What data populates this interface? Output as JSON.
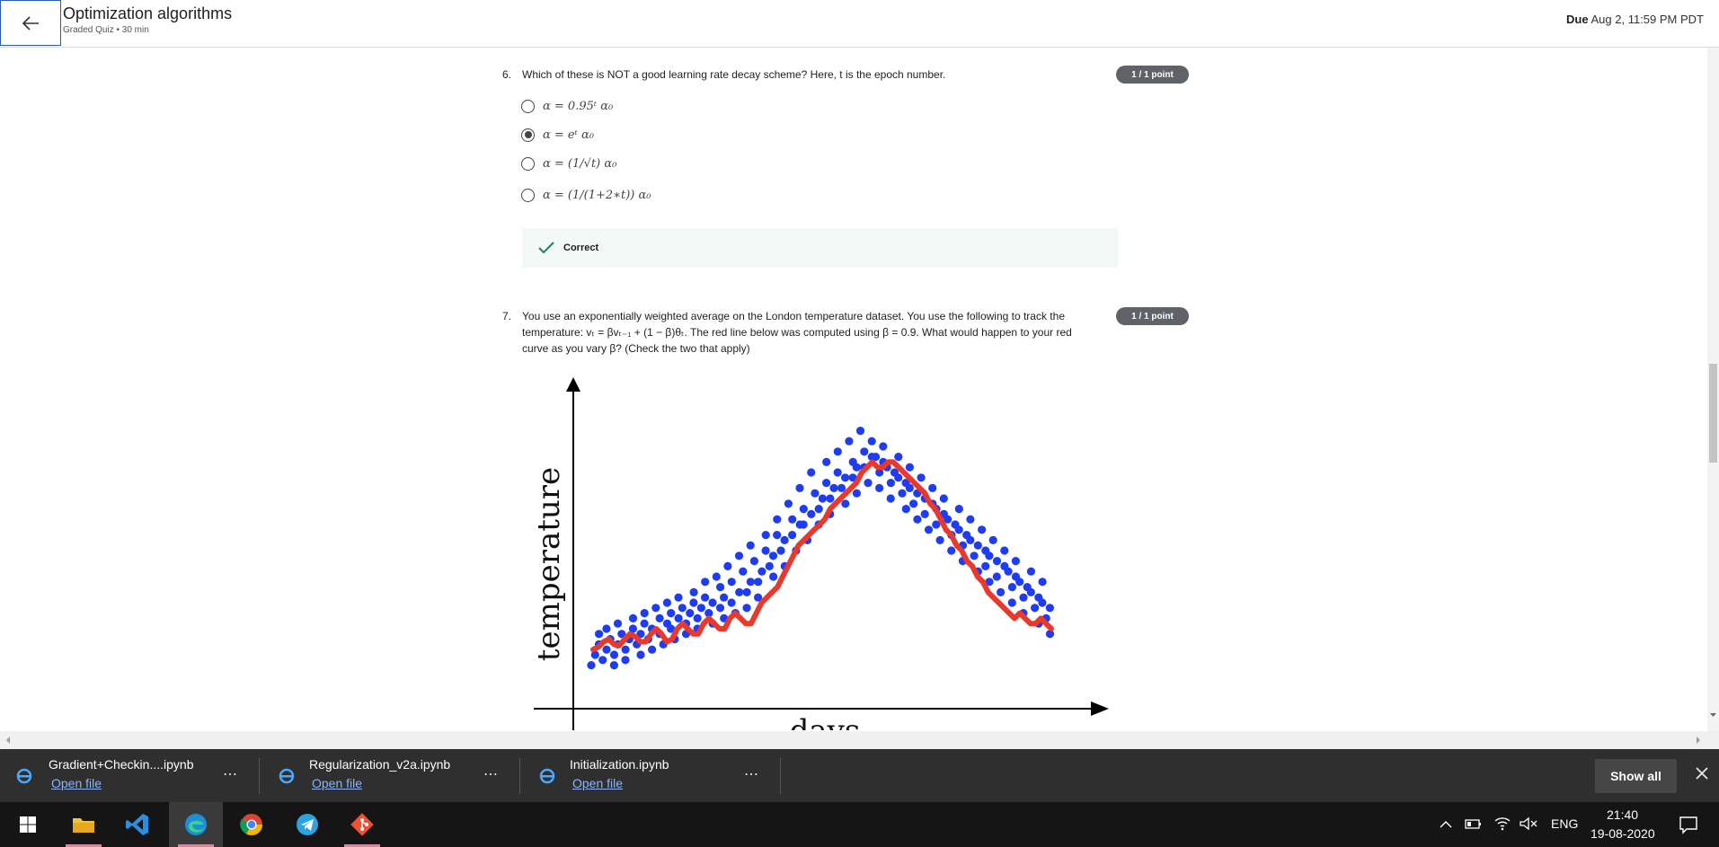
{
  "header": {
    "title": "Optimization algorithms",
    "subtitle": "Graded Quiz • 30 min",
    "due_label": "Due",
    "due_value": "Aug 2, 11:59 PM PDT"
  },
  "question6": {
    "number": "6.",
    "text": "Which of these is NOT a good learning rate decay scheme? Here, t is the epoch number.",
    "badge": "1 / 1 point",
    "options": [
      {
        "text": "α = 0.95ᵗ α₀",
        "selected": false
      },
      {
        "text": "α = eᵗ α₀",
        "selected": true
      },
      {
        "text": "α = (1/√t) α₀",
        "selected": false
      },
      {
        "text": "α = (1/(1+2∗t)) α₀",
        "selected": false
      }
    ],
    "feedback": "Correct"
  },
  "question7": {
    "number": "7.",
    "line1": "You use an exponentially weighted average on the London temperature dataset. You use the following to track the",
    "line2": "temperature: vₜ = βvₜ₋₁ + (1 − β)θₜ. The red line below was computed using β = 0.9. What would happen to your red",
    "line3": "curve as you vary β? (Check the two that apply)",
    "badge": "1 / 1 point"
  },
  "chart_data": {
    "type": "scatter",
    "xlabel": "days",
    "ylabel": "temperature",
    "point_color": "#1f3cf5",
    "line_color": "#e8392c",
    "points_y": [
      3,
      5,
      9,
      7,
      4,
      6,
      10,
      8,
      5,
      3,
      7,
      11,
      9,
      6,
      4,
      8,
      12,
      10,
      7,
      5,
      9,
      13,
      11,
      8,
      6,
      10,
      14,
      12,
      9,
      7,
      11,
      15,
      13,
      10,
      8,
      12,
      16,
      14,
      11,
      9,
      13,
      17,
      15,
      12,
      10,
      14,
      19,
      16,
      13,
      11,
      15,
      20,
      18,
      14,
      12,
      16,
      22,
      19,
      15,
      13,
      17,
      24,
      21,
      17,
      14,
      19,
      26,
      23,
      19,
      16,
      21,
      28,
      25,
      22,
      20,
      24,
      31,
      28,
      25,
      22,
      27,
      34,
      31,
      28,
      25,
      30,
      37,
      33,
      30,
      27,
      32,
      40,
      36,
      33,
      30,
      35,
      42,
      38,
      35,
      32,
      37,
      44,
      40,
      37,
      34,
      39,
      46,
      42,
      39,
      36,
      41,
      48,
      44,
      41,
      38,
      43,
      46,
      43,
      40,
      37,
      42,
      45,
      41,
      38,
      35,
      40,
      43,
      39,
      36,
      33,
      38,
      41,
      37,
      34,
      31,
      36,
      39,
      35,
      32,
      29,
      34,
      37,
      33,
      30,
      27,
      32,
      35,
      31,
      28,
      25,
      30,
      33,
      29,
      26,
      23,
      28,
      31,
      27,
      24,
      21,
      26,
      29,
      25,
      22,
      19,
      24,
      27,
      23,
      20,
      17,
      22,
      25,
      21,
      18,
      15,
      20,
      23,
      19,
      16,
      13,
      18,
      21,
      17,
      14,
      11,
      16,
      19,
      15,
      12,
      9,
      14
    ],
    "ewa_y": [
      6,
      6.5,
      7.5,
      8,
      7,
      6.8,
      8,
      9,
      8.5,
      7.5,
      7.5,
      9,
      10,
      9,
      7.5,
      8,
      10,
      11,
      10,
      9,
      9,
      11,
      12,
      11,
      10,
      10,
      12,
      13,
      12,
      11,
      11,
      13,
      15,
      16,
      17,
      18,
      20,
      22,
      24,
      26,
      27,
      28,
      29,
      30,
      31,
      33,
      34,
      35,
      36,
      37,
      38,
      40,
      41,
      42,
      41,
      41,
      42,
      42,
      41,
      40,
      39,
      38,
      37,
      36,
      34,
      33,
      31,
      29,
      28,
      26,
      25,
      23,
      22,
      20,
      19,
      17,
      16,
      15,
      14,
      13,
      12,
      13,
      12,
      11,
      11,
      12,
      11,
      10
    ]
  },
  "downloads": {
    "items": [
      {
        "name": "Gradient+Checkin....ipynb",
        "link": "Open file"
      },
      {
        "name": "Regularization_v2a.ipynb",
        "link": "Open file"
      },
      {
        "name": "Initialization.ipynb",
        "link": "Open file"
      }
    ],
    "show_all": "Show all"
  },
  "taskbar": {
    "language": "ENG",
    "time": "21:40",
    "date": "19-08-2020"
  }
}
